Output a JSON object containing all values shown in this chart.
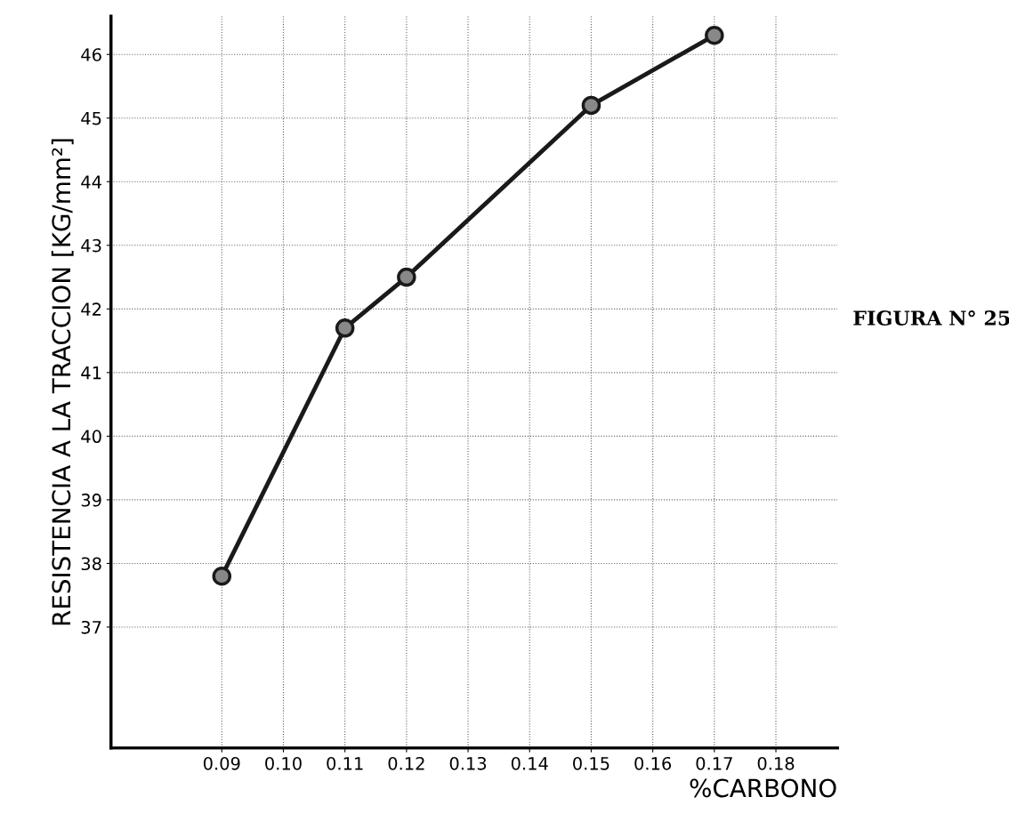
{
  "chart_data": {
    "type": "line",
    "xlabel": "%CARBONO",
    "ylabel": "RESISTENCIA A LA TRACCION [KG/mm²]",
    "x": [
      0.09,
      0.11,
      0.12,
      0.15,
      0.17
    ],
    "series": [
      {
        "color": "#1a1a1a",
        "values": [
          37.8,
          41.7,
          42.5,
          45.2,
          46.3
        ]
      }
    ],
    "xlim": [
      0.072,
      0.19
    ],
    "ylim": [
      35.1,
      46.6
    ],
    "xticks": [
      0.09,
      {
        "value": 0.1,
        "label": "0.10"
      },
      0.11,
      0.12,
      0.13,
      0.14,
      0.15,
      0.16,
      0.17,
      0.18
    ],
    "yticks": [
      37,
      38,
      39,
      40,
      41,
      42,
      43,
      44,
      45,
      46
    ],
    "grid": true,
    "marker": "circle",
    "line_style": "solid",
    "annotations": [
      "FIGURA N° 25"
    ]
  }
}
